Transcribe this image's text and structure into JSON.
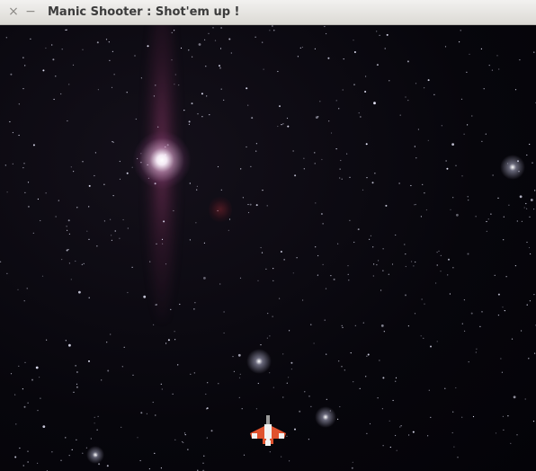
{
  "window": {
    "title": "Manic Shooter : Shot'em up !",
    "close_glyph": "×",
    "minimize_glyph": "−"
  },
  "game": {
    "background_color": "#07060c",
    "player_ship_icon": "player-spaceship-icon",
    "ship_colors": {
      "body": "#f2f2f2",
      "wing_accent": "#e0522e",
      "cockpit": "#9a9a9a"
    }
  }
}
